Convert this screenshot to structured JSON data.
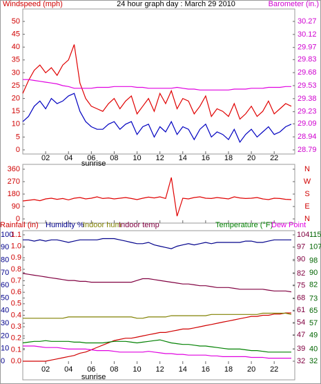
{
  "chart_data": [
    {
      "type": "line",
      "title": "24 hour graph day : March 29 2010",
      "y_label": "Windspeed (mph)",
      "y2_label": "Barometer (in.)",
      "y_color": "#d00000",
      "y2_color": "#d000d0",
      "x": [
        0,
        0.5,
        1,
        1.5,
        2,
        2.5,
        3,
        3.5,
        4,
        4.5,
        5,
        5.5,
        6,
        6.5,
        7,
        7.5,
        8,
        8.5,
        9,
        9.5,
        10,
        10.5,
        11,
        11.5,
        12,
        12.5,
        13,
        13.5,
        14,
        14.5,
        15,
        15.5,
        16,
        16.5,
        17,
        17.5,
        18,
        18.5,
        19,
        19.5,
        20,
        20.5,
        21,
        21.5,
        22,
        22.5,
        23,
        23.5
      ],
      "xlim": [
        0,
        23.8
      ],
      "xticks": [
        {
          "value": 2,
          "label": "02"
        },
        {
          "value": 4,
          "label": "04"
        },
        {
          "value": 6,
          "label": "06"
        },
        {
          "value": 8,
          "label": "08"
        },
        {
          "value": 10,
          "label": "10"
        },
        {
          "value": 12,
          "label": "12"
        },
        {
          "value": 14,
          "label": "14"
        },
        {
          "value": 16,
          "label": "16"
        },
        {
          "value": 18,
          "label": "18"
        },
        {
          "value": 20,
          "label": "20"
        },
        {
          "value": 22,
          "label": "22"
        }
      ],
      "ylim": [
        0,
        50
      ],
      "yticks": [
        0,
        5,
        10,
        15,
        20,
        25,
        30,
        35,
        40,
        45,
        50
      ],
      "y2lim": [
        28.79,
        30.27
      ],
      "y2ticks": [
        28.79,
        28.94,
        29.09,
        29.23,
        29.38,
        29.53,
        29.68,
        29.83,
        29.97,
        30.12,
        30.27
      ],
      "annotations": [
        {
          "x": 6.2,
          "text": "sunrise"
        }
      ],
      "series": [
        {
          "color": "#e00000",
          "axis": "y",
          "values": [
            22,
            27,
            31,
            33,
            30,
            32,
            29,
            33,
            35,
            41,
            26,
            20,
            17,
            16,
            15,
            18,
            20,
            16,
            19,
            21,
            14,
            17,
            20,
            15,
            22,
            18,
            23,
            16,
            20,
            19,
            14,
            17,
            21,
            13,
            16,
            15,
            13,
            18,
            12,
            14,
            17,
            13,
            15,
            19,
            14,
            16,
            18,
            17
          ]
        },
        {
          "color": "#0000c0",
          "axis": "y",
          "values": [
            11,
            13,
            17,
            19,
            16,
            20,
            18,
            19,
            21,
            22,
            15,
            11,
            9,
            8,
            8,
            10,
            11,
            8,
            10,
            11,
            6,
            9,
            10,
            5,
            9,
            7,
            11,
            6,
            9,
            8,
            4,
            8,
            10,
            5,
            7,
            6,
            4,
            8,
            3,
            6,
            8,
            5,
            7,
            9,
            6,
            7,
            9,
            10
          ]
        },
        {
          "color": "#e000e0",
          "axis": "y2",
          "values": [
            29.6,
            29.6,
            29.59,
            29.58,
            29.57,
            29.56,
            29.55,
            29.53,
            29.52,
            29.5,
            29.5,
            29.5,
            29.5,
            29.51,
            29.51,
            29.51,
            29.52,
            29.52,
            29.52,
            29.52,
            29.51,
            29.51,
            29.5,
            29.5,
            29.5,
            29.5,
            29.5,
            29.51,
            29.5,
            29.49,
            29.49,
            29.48,
            29.48,
            29.48,
            29.48,
            29.48,
            29.48,
            29.49,
            29.49,
            29.49,
            29.5,
            29.5,
            29.5,
            29.51,
            29.51,
            29.51,
            29.52,
            29.52
          ]
        }
      ]
    },
    {
      "type": "line",
      "y_color": "#d00000",
      "y2_color": "#d00000",
      "x": [
        0,
        0.5,
        1,
        1.5,
        2,
        2.5,
        3,
        3.5,
        4,
        4.5,
        5,
        5.5,
        6,
        6.5,
        7,
        7.5,
        8,
        8.5,
        9,
        9.5,
        10,
        10.5,
        11,
        11.5,
        12,
        12.5,
        13,
        13.5,
        14,
        14.5,
        15,
        15.5,
        16,
        16.5,
        17,
        17.5,
        18,
        18.5,
        19,
        19.5,
        20,
        20.5,
        21,
        21.5,
        22,
        22.5,
        23,
        23.5
      ],
      "xlim": [
        0,
        23.8
      ],
      "xticks": [
        2,
        4,
        6,
        8,
        10,
        12,
        14,
        16,
        18,
        20,
        22
      ],
      "ylim": [
        0,
        360
      ],
      "yticks": [
        0,
        90,
        180,
        270,
        360
      ],
      "y2lim": [
        0,
        360
      ],
      "y2ticks": [
        {
          "value": 0,
          "label": "N"
        },
        {
          "value": 90,
          "label": "E"
        },
        {
          "value": 180,
          "label": "S"
        },
        {
          "value": 270,
          "label": "W"
        },
        {
          "value": 360,
          "label": "N"
        }
      ],
      "series": [
        {
          "color": "#e00000",
          "axis": "y",
          "values": [
            130,
            135,
            140,
            132,
            145,
            150,
            142,
            148,
            138,
            150,
            155,
            145,
            150,
            160,
            148,
            152,
            145,
            150,
            155,
            148,
            140,
            150,
            158,
            152,
            160,
            148,
            300,
            20,
            150,
            145,
            155,
            160,
            150,
            148,
            155,
            150,
            145,
            160,
            152,
            148,
            150,
            155,
            145,
            140,
            150,
            148,
            142,
            140
          ]
        }
      ]
    },
    {
      "type": "line",
      "y_color": "#00008b",
      "y2_color": "#d00000",
      "y3_color": "#800040",
      "y4_color": "#006400",
      "x": [
        0,
        0.5,
        1,
        1.5,
        2,
        2.5,
        3,
        3.5,
        4,
        4.5,
        5,
        5.5,
        6,
        6.5,
        7,
        7.5,
        8,
        8.5,
        9,
        9.5,
        10,
        10.5,
        11,
        11.5,
        12,
        12.5,
        13,
        13.5,
        14,
        14.5,
        15,
        15.5,
        16,
        16.5,
        17,
        17.5,
        18,
        18.5,
        19,
        19.5,
        20,
        20.5,
        21,
        21.5,
        22,
        22.5,
        23,
        23.5
      ],
      "xlim": [
        0,
        23.8
      ],
      "xticks": [
        {
          "value": 2,
          "label": "02"
        },
        {
          "value": 4,
          "label": "04"
        },
        {
          "value": 6,
          "label": "06"
        },
        {
          "value": 8,
          "label": "08"
        },
        {
          "value": 10,
          "label": "10"
        },
        {
          "value": 12,
          "label": "12"
        },
        {
          "value": 14,
          "label": "14"
        },
        {
          "value": 16,
          "label": "16"
        },
        {
          "value": 18,
          "label": "18"
        },
        {
          "value": 20,
          "label": "20"
        },
        {
          "value": 22,
          "label": "22"
        }
      ],
      "ylim": [
        0,
        100
      ],
      "yticks": [
        0,
        10,
        20,
        30,
        40,
        50,
        60,
        70,
        80,
        90,
        100
      ],
      "y2lim": [
        0,
        1.1
      ],
      "y2ticks": [
        {
          "value": 0,
          "label": "0.0"
        },
        0.1,
        0.2,
        0.3,
        0.4,
        0.5,
        0.6,
        0.7,
        0.8,
        0.9,
        {
          "value": 1,
          "label": "1.0"
        },
        1.1
      ],
      "y3lim": [
        32,
        104
      ],
      "y3ticks": [
        32,
        39,
        47,
        54,
        61,
        68,
        75,
        82,
        90,
        97,
        104
      ],
      "y4lim": [
        32,
        115
      ],
      "y4ticks": [
        32,
        40,
        49,
        57,
        65,
        73,
        82,
        90,
        98,
        107,
        115
      ],
      "annotations": [
        {
          "x": 6.2,
          "text": "sunrise"
        }
      ],
      "series": [
        {
          "name": "Rainfall (in)",
          "color": "#d00000",
          "axis": "y2",
          "values": [
            0,
            0,
            0,
            0,
            0,
            0.01,
            0.02,
            0.03,
            0.04,
            0.05,
            0.07,
            0.08,
            0.1,
            0.12,
            0.14,
            0.16,
            0.18,
            0.19,
            0.2,
            0.2,
            0.21,
            0.22,
            0.23,
            0.24,
            0.25,
            0.25,
            0.26,
            0.27,
            0.28,
            0.28,
            0.29,
            0.3,
            0.31,
            0.32,
            0.33,
            0.34,
            0.35,
            0.36,
            0.37,
            0.38,
            0.39,
            0.39,
            0.4,
            0.4,
            0.41,
            0.41,
            0.42,
            0.42
          ]
        },
        {
          "name": "Humidity %",
          "color": "#00008b",
          "axis": "y",
          "values": [
            96,
            96,
            95,
            96,
            95,
            96,
            96,
            95,
            94,
            95,
            96,
            96,
            96,
            96,
            97,
            97,
            97,
            96,
            95,
            94,
            93,
            93,
            94,
            92,
            91,
            90,
            89,
            91,
            92,
            93,
            92,
            93,
            94,
            93,
            94,
            94,
            94,
            94,
            94,
            95,
            95,
            94,
            94,
            95,
            96,
            96,
            96,
            96
          ]
        },
        {
          "name": "Indoor hum",
          "color": "#808000",
          "axis": "y",
          "values": [
            34,
            34,
            34,
            34,
            34,
            34,
            34,
            34,
            35,
            35,
            35,
            35,
            35,
            35,
            35,
            35,
            35,
            35,
            35,
            35,
            34,
            34,
            35,
            35,
            35,
            35,
            36,
            36,
            36,
            36,
            36,
            36,
            36,
            37,
            37,
            37,
            37,
            37,
            37,
            37,
            37,
            37,
            38,
            38,
            38,
            38,
            38,
            37
          ]
        },
        {
          "name": "Indoor temp",
          "color": "#800040",
          "axis": "y3",
          "values": [
            82,
            81.5,
            81,
            80.5,
            80,
            79.5,
            79,
            78.5,
            78,
            78,
            77.5,
            77.5,
            77,
            77,
            77,
            77,
            77,
            77,
            77,
            77,
            78,
            79,
            79,
            78.5,
            78,
            77.5,
            77,
            76.5,
            76,
            76,
            75.5,
            75,
            75,
            74.5,
            74,
            74,
            74,
            73.5,
            73,
            73,
            73,
            73,
            73,
            72.5,
            72,
            72,
            72,
            71.5
          ]
        },
        {
          "name": "Temperature (°F)",
          "color": "#008000",
          "axis": "y4",
          "values": [
            44,
            44.5,
            45,
            45,
            45.5,
            45,
            45,
            45,
            45,
            44.5,
            44.5,
            44,
            44,
            44,
            44,
            44.5,
            45,
            45,
            45,
            44.5,
            44,
            44.5,
            45,
            45.5,
            46,
            45,
            44,
            43.5,
            43,
            43,
            42.5,
            42,
            42,
            41.5,
            41,
            40.5,
            40,
            40,
            40,
            39.5,
            39,
            39,
            38.5,
            38,
            38,
            38,
            38,
            38
          ]
        },
        {
          "name": "Dew Point",
          "color": "#e000e0",
          "axis": "y4",
          "values": [
            42,
            42,
            42,
            41.5,
            41,
            41,
            41,
            40.5,
            40,
            40,
            40,
            40,
            39.5,
            39,
            39,
            39,
            38.5,
            38,
            38,
            38,
            38,
            38,
            38.5,
            38,
            37.5,
            37,
            37,
            36.5,
            36.5,
            36,
            36,
            36,
            36,
            35.5,
            35.5,
            35,
            35,
            35,
            35,
            35,
            34.5,
            34.5,
            34.5,
            34,
            34,
            34,
            34,
            34
          ]
        }
      ]
    }
  ]
}
